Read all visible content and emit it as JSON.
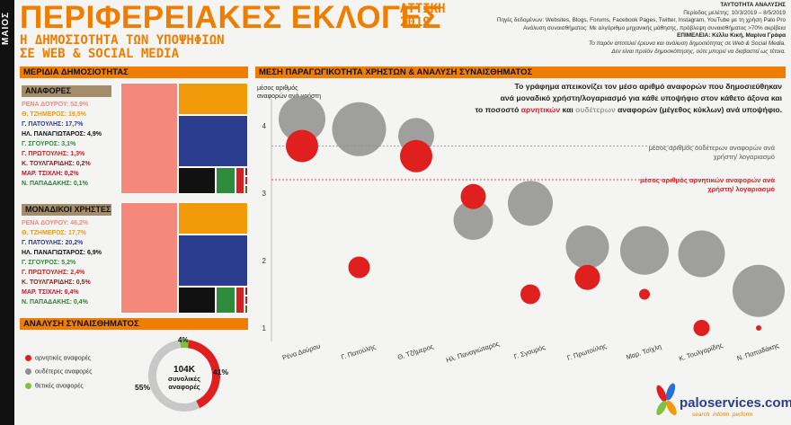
{
  "side_label": "ΜΑΙΟΣ",
  "header": {
    "title": "ΠΕΡΙΦΕΡΕΙΑΚΕΣ ΕΚΛΟΓΕΣ",
    "subtitle1": "Η ΔΗΜΟΣΙΟΤΗΤΑ ΤΩΝ ΥΠΟΨΗΦΙΩΝ",
    "subtitle2": "ΣΕ WEB & SOCIAL MEDIA",
    "region": "ΑΤΤΙΚΗ",
    "year": "2019"
  },
  "info": {
    "heading": "ΤΑΥΤΟΤΗΤΑ ΑΝΑΛΥΣΗΣ",
    "period": "Περίοδος μελέτης: 10/3/2019 – 8/5/2019",
    "sources": "Πηγές δεδομένων: Websites, Blogs, Forums, Facebook Pages, Twitter, Instagram, YouTube με τη χρήση Palo Pro",
    "sentiment": "Ανάλυση συναισθήματος: Με αλγόριθμο μηχανικής μάθησης, πρόβλεψη συναισθήματος >70% ακρίβεια",
    "editors": "ΕΠΙΜΕΛΕΙΑ: Κέλλυ Κική, Μαρίνα Γράφα",
    "note1": "Το παρόν αποτελεί έρευνα και ανάλυση δημοσιότητας σε Web & Social Media.",
    "note2": "Δεν είναι προϊόν δημοσκόπησης, ούτε μπορεί να διαβαστεί ως τέτοια."
  },
  "share_section": {
    "title": "ΜΕΡΙΔΙΑ ΔΗΜΟΣΙΟΤΗΤΑΣ",
    "mentions_title": "ΑΝΑΦΟΡΕΣ",
    "mentions": [
      {
        "label": "ΡΕΝΑ ΔΟΥΡΟΥ: 52,9%",
        "color": "#f4897b"
      },
      {
        "label": "Θ. ΤΖΗΜΕΡΟΣ: 19,5%",
        "color": "#f39a0b"
      },
      {
        "label": "Γ. ΠΑΤΟΥΛΗΣ: 17,7%",
        "color": "#2b3d8f"
      },
      {
        "label": "ΗΛ. ΠΑΝΑΓΙΩΤΑΡΟΣ: 4,9%",
        "color": "#111111"
      },
      {
        "label": "Γ. ΣΓΟΥΡΟΣ: 3,1%",
        "color": "#2e8b3c"
      },
      {
        "label": "Γ. ΠΡΩΤΟΥΛΗΣ: 1,3%",
        "color": "#d42020"
      },
      {
        "label": "Κ. ΤΟΥΛΓΑΡΙΔΗΣ: 0,2%",
        "color": "#8b1e1e"
      },
      {
        "label": "ΜΑΡ. ΤΣΙΧΛΗ: 0,2%",
        "color": "#c8172c"
      },
      {
        "label": "Ν. ΠΑΠΑΔΑΚΗΣ: 0,1%",
        "color": "#2e7d32"
      }
    ],
    "users_title": "ΜΟΝΑΔΙΚΟΙ ΧΡΗΣΤΕΣ",
    "users": [
      {
        "label": "ΡΕΝΑ ΔΟΥΡΟΥ: 46,2%",
        "color": "#f4897b"
      },
      {
        "label": "Θ. ΤΖΗΜΕΡΟΣ: 17,7%",
        "color": "#f39a0b"
      },
      {
        "label": "Γ. ΠΑΤΟΥΛΗΣ: 20,2%",
        "color": "#2b3d8f"
      },
      {
        "label": "ΗΛ. ΠΑΝΑΓΙΩΤΑΡΟΣ: 6,9%",
        "color": "#111111"
      },
      {
        "label": "Γ. ΣΓΟΥΡΟΣ: 5,2%",
        "color": "#2e8b3c"
      },
      {
        "label": "Γ. ΠΡΩΤΟΥΛΗΣ: 2,4%",
        "color": "#d42020"
      },
      {
        "label": "Κ. ΤΟΥΛΓΑΡΙΔΗΣ: 0,5%",
        "color": "#8b1e1e"
      },
      {
        "label": "ΜΑΡ. ΤΣΙΧΛΗ: 0,4%",
        "color": "#c8172c"
      },
      {
        "label": "Ν. ΠΑΠΑΔΑΚΗΣ: 0,4%",
        "color": "#2e7d32"
      }
    ]
  },
  "sentiment_section": {
    "title": "ΑΝΑΛΥΣΗ ΣΥΝΑΙΣΘΗΜΑΤΟΣ",
    "legend": [
      {
        "label": "αρνητικές αναφορές",
        "color": "#e01f1f"
      },
      {
        "label": "ουδέτερες αναφορές",
        "color": "#8f8f8f"
      },
      {
        "label": "θετικές αναφορές",
        "color": "#7dc242"
      }
    ],
    "donut": {
      "negative": 41,
      "neutral": 55,
      "positive": 4,
      "neg_label": "41%",
      "neu_label": "55%",
      "pos_label": "4%"
    },
    "center_value": "104K",
    "center_text1": "συνολικές",
    "center_text2": "αναφορές"
  },
  "main": {
    "title": "ΜΕΣΗ ΠΑΡΑΓΩΓΙΚΟΤΗΤΑ ΧΡΗΣΤΩΝ & ΑΝΑΛΥΣΗ ΣΥΝΑΙΣΘΗΜΑΤΟΣ",
    "yaxis_title1": "μέσος αριθμός",
    "yaxis_title2": "αναφορών ανά χρήστη",
    "explain1": "Το γράφημα απεικονίζει τον μέσο αριθμό αναφορών που δημοσιεύθηκαν",
    "explain2": "ανά μοναδικό χρήστη/λογαριασμό για κάθε υποψήφιο στον κάθετο άξονα και",
    "explain3a": "το ποσοστό ",
    "explain3b": "αρνητικών",
    "explain3c": " και ",
    "explain3d": "ουδέτερων",
    "explain3e": " αναφορών (μέγεθος κύκλων) ανά υποψήφιο.",
    "neutral_avg": "μέσος αριθμός ουδέτερων αναφορών ανά χρήστη/ λογαριασμό",
    "negative_avg": "μέσος αριθμός αρνητικών αναφορών ανά χρήστη/ λογαριασμό"
  },
  "chart_data": {
    "type": "scatter",
    "categories": [
      "Ρένα Δούρου",
      "Γ. Πατούλης",
      "Θ. Τζήμερος",
      "Ηλ. Παναγιώταρος",
      "Γ. Σγουρός",
      "Γ. Πρωτούλης",
      "Μαρ. Τσίχλη",
      "Κ. Τουλγαρίδης",
      "Ν. Παπαδάκης"
    ],
    "yticks": [
      1,
      2,
      3,
      4
    ],
    "ylim": [
      0.8,
      4.4
    ],
    "series": [
      {
        "name": "ουδέτερες",
        "color": "#8f8f8f",
        "values": [
          4.1,
          3.95,
          3.85,
          2.6,
          2.85,
          2.2,
          2.15,
          2.1,
          1.55
        ],
        "sizes": [
          26,
          30,
          20,
          22,
          25,
          24,
          27,
          26,
          29
        ]
      },
      {
        "name": "αρνητικές",
        "color": "#e01f1f",
        "values": [
          3.7,
          1.9,
          3.55,
          2.95,
          1.5,
          1.75,
          1.5,
          1.0,
          1.0
        ],
        "sizes": [
          18,
          12,
          18,
          14,
          11,
          14,
          6,
          9,
          3
        ]
      }
    ],
    "reference_lines": [
      {
        "name": "neutral_avg",
        "value": 3.7,
        "color": "#8f8f8f"
      },
      {
        "name": "negative_avg",
        "value": 3.2,
        "color": "#e01f1f"
      }
    ]
  },
  "brand": {
    "name": "paloservices.com",
    "tagline": "search  inform  perform"
  }
}
